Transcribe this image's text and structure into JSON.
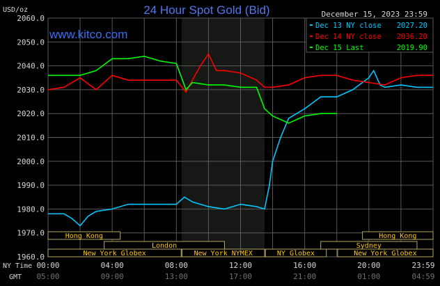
{
  "chart_data": {
    "type": "line",
    "title": "24 Hour Spot Gold (Bid)",
    "watermark": "www.kitco.com",
    "timestamp": "December 15, 2023 23:59",
    "ylabel": "USD/oz",
    "ylim": [
      1960,
      2060
    ],
    "yticks": [
      "2060.0",
      "2050.0",
      "2040.0",
      "2030.0",
      "2020.0",
      "2010.0",
      "2000.0",
      "1990.0",
      "1980.0",
      "1970.0",
      "1960.0"
    ],
    "xlim_hours": [
      0,
      24
    ],
    "xticks_ny": [
      "00:00",
      "04:00",
      "08:00",
      "12:00",
      "16:00",
      "20:00",
      "23:59"
    ],
    "xticks_gmt": [
      "05:00",
      "09:00",
      "13:00",
      "17:00",
      "21:00",
      "01:00",
      "04:59"
    ],
    "xaxis_label_ny": "NY Time",
    "xaxis_label_gmt": "GMT",
    "grid": true,
    "legend_placement": "top-right",
    "shaded_hours": [
      8.33,
      13.5
    ],
    "series": [
      {
        "name": "Dec 13 NY close",
        "value": "2027.20",
        "color": "#00c8ff",
        "x": [
          0,
          1,
          1.5,
          2,
          2.5,
          3,
          4,
          5,
          6,
          7,
          8,
          8.5,
          9,
          10,
          11,
          12,
          13,
          13.5,
          13.8,
          14,
          14.5,
          15,
          16,
          17,
          18,
          19,
          20,
          20.3,
          20.7,
          21,
          22,
          23,
          24
        ],
        "y": [
          1978,
          1978,
          1976,
          1973,
          1977,
          1979,
          1980,
          1982,
          1982,
          1982,
          1982,
          1985,
          1983,
          1981,
          1980,
          1982,
          1981,
          1980,
          1990,
          2000,
          2010,
          2018,
          2022,
          2027,
          2027,
          2030,
          2035,
          2038,
          2032,
          2031,
          2032,
          2031,
          2031
        ]
      },
      {
        "name": "Dec 14 NY close",
        "value": "2036.20",
        "color": "#ff0000",
        "x": [
          0,
          1,
          2,
          3,
          4,
          5,
          6,
          7,
          8,
          8.6,
          9,
          9.5,
          10,
          10.5,
          11,
          12,
          13,
          13.5,
          14,
          15,
          16,
          17,
          18,
          19,
          20,
          21,
          22,
          23,
          24
        ],
        "y": [
          2030,
          2031,
          2035,
          2030,
          2036,
          2034,
          2034,
          2034,
          2034,
          2029,
          2034,
          2040,
          2045,
          2038,
          2038,
          2037,
          2034,
          2031,
          2031,
          2032,
          2035,
          2036,
          2036,
          2034,
          2033,
          2032,
          2035,
          2036,
          2036
        ]
      },
      {
        "name": "Dec 15 Last",
        "value": "2019.90",
        "color": "#00ff00",
        "x": [
          0,
          1,
          2,
          3,
          4,
          5,
          6,
          7,
          8,
          8.6,
          9,
          10,
          11,
          12,
          13,
          13.5,
          14,
          15,
          16,
          17,
          18
        ],
        "y": [
          2036,
          2036,
          2036,
          2038,
          2043,
          2043,
          2044,
          2042,
          2041,
          2030,
          2033,
          2032,
          2032,
          2031,
          2031,
          2022,
          2019,
          2016,
          2019,
          2020,
          2020
        ]
      }
    ],
    "sessions": [
      {
        "label": "Hong Kong",
        "row": 0,
        "start": 0,
        "end": 4.5
      },
      {
        "label": "Hong Kong",
        "row": 0,
        "start": 19.6,
        "end": 24
      },
      {
        "label": "London",
        "row": 1,
        "start": 3.5,
        "end": 11
      },
      {
        "label": "Sydney",
        "row": 1,
        "start": 17,
        "end": 23
      },
      {
        "label": "New York Globex",
        "row": 2,
        "start": 0,
        "end": 8.3
      },
      {
        "label": "New York NYMEX",
        "row": 2,
        "start": 8.35,
        "end": 13.5
      },
      {
        "label": "NY Globex",
        "row": 2,
        "start": 13.55,
        "end": 17.35
      },
      {
        "label": "New York Globex",
        "row": 2,
        "start": 18.05,
        "end": 24
      }
    ]
  }
}
